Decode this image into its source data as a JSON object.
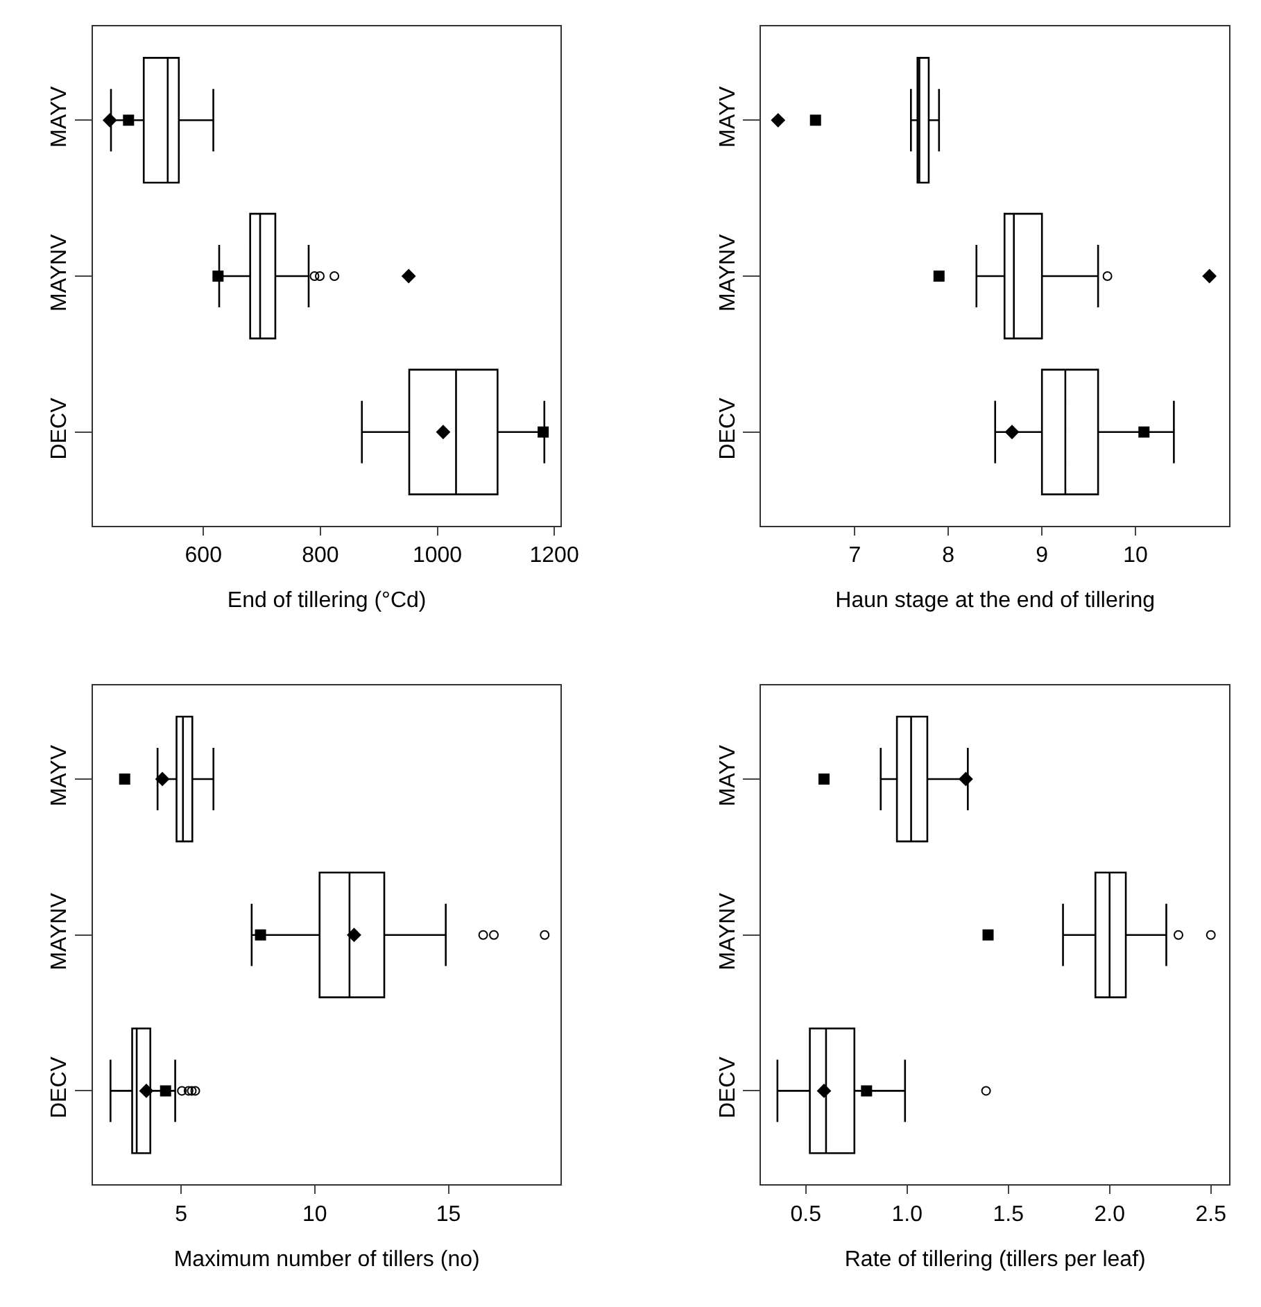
{
  "chart_data": [
    {
      "type": "box",
      "orientation": "horizontal",
      "categories": [
        "MAYV",
        "MAYNV",
        "DECV"
      ],
      "xlabel": "End of tillering (°Cd)",
      "xlim": [
        411,
        1211
      ],
      "xticks": [
        600,
        800,
        1000,
        1200
      ],
      "boxes": [
        {
          "low": 442,
          "q1": 498,
          "median": 539,
          "q3": 558,
          "high": 617
        },
        {
          "low": 627,
          "q1": 680,
          "median": 697,
          "q3": 723,
          "high": 780,
          "outliers": [
            790,
            799,
            824
          ]
        },
        {
          "low": 871,
          "q1": 952,
          "median": 1032,
          "q3": 1103,
          "high": 1183
        }
      ],
      "series": [
        {
          "type": "scatter",
          "marker": "square",
          "color": "#000000",
          "values": [
            472,
            625,
            1181
          ]
        },
        {
          "type": "scatter",
          "marker": "diamond",
          "color": "#000000",
          "values": [
            440,
            951,
            1010
          ]
        }
      ]
    },
    {
      "type": "box",
      "orientation": "horizontal",
      "categories": [
        "MAYV",
        "MAYNV",
        "DECV"
      ],
      "xlabel": "Haun stage at the end of tillering",
      "xlim": [
        6.0,
        11.0
      ],
      "xticks": [
        7,
        8,
        9,
        10
      ],
      "boxes": [
        {
          "low": 7.6,
          "q1": 7.67,
          "median": 7.69,
          "q3": 7.79,
          "high": 7.9
        },
        {
          "low": 8.3,
          "q1": 8.6,
          "median": 8.7,
          "q3": 9.0,
          "high": 9.6,
          "outliers": [
            9.7
          ]
        },
        {
          "low": 8.5,
          "q1": 9.0,
          "median": 9.25,
          "q3": 9.6,
          "high": 10.41
        }
      ],
      "series": [
        {
          "type": "scatter",
          "marker": "square",
          "color": "#000000",
          "values": [
            6.58,
            7.9,
            10.09
          ]
        },
        {
          "type": "scatter",
          "marker": "diamond",
          "color": "#000000",
          "values": [
            6.18,
            10.79,
            8.68
          ]
        }
      ]
    },
    {
      "type": "box",
      "orientation": "horizontal",
      "categories": [
        "MAYV",
        "MAYNV",
        "DECV"
      ],
      "xlabel": "Maximum number of tillers (no)",
      "xlim": [
        1.7,
        19.2
      ],
      "xticks": [
        5,
        10,
        15
      ],
      "boxes": [
        {
          "low": 4.12,
          "q1": 4.83,
          "median": 5.07,
          "q3": 5.42,
          "high": 6.21
        },
        {
          "low": 7.64,
          "q1": 10.18,
          "median": 11.3,
          "q3": 12.6,
          "high": 14.9,
          "outliers": [
            16.3,
            16.7,
            18.6
          ]
        },
        {
          "low": 2.36,
          "q1": 3.17,
          "median": 3.34,
          "q3": 3.85,
          "high": 4.78,
          "outliers": [
            5.03,
            5.28,
            5.4,
            5.53
          ]
        }
      ],
      "series": [
        {
          "type": "scatter",
          "marker": "square",
          "color": "#000000",
          "values": [
            2.89,
            7.97,
            4.42
          ]
        },
        {
          "type": "scatter",
          "marker": "diamond",
          "color": "#000000",
          "values": [
            4.3,
            11.47,
            3.7
          ]
        }
      ]
    },
    {
      "type": "box",
      "orientation": "horizontal",
      "categories": [
        "MAYV",
        "MAYNV",
        "DECV"
      ],
      "xlabel": "Rate of tillering (tillers per leaf)",
      "xlim": [
        0.28,
        2.59
      ],
      "xticks": [
        {
          "value": 0.5,
          "label": "0.5"
        },
        {
          "value": 1.0,
          "label": "1.0"
        },
        {
          "value": 1.5,
          "label": "1.5"
        },
        {
          "value": 2.0,
          "label": "2.0"
        },
        {
          "value": 2.5,
          "label": "2.5"
        }
      ],
      "boxes": [
        {
          "low": 0.87,
          "q1": 0.95,
          "median": 1.02,
          "q3": 1.1,
          "high": 1.3
        },
        {
          "low": 1.77,
          "q1": 1.93,
          "median": 2.0,
          "q3": 2.08,
          "high": 2.28,
          "outliers": [
            2.34,
            2.5
          ]
        },
        {
          "low": 0.36,
          "q1": 0.52,
          "median": 0.6,
          "q3": 0.74,
          "high": 0.99,
          "outliers": [
            1.39
          ]
        }
      ],
      "series": [
        {
          "type": "scatter",
          "marker": "square",
          "color": "#000000",
          "values": [
            0.59,
            1.4,
            0.8
          ]
        },
        {
          "type": "scatter",
          "marker": "diamond",
          "color": "#000000",
          "values": [
            1.29,
            null,
            0.59
          ]
        }
      ]
    }
  ]
}
